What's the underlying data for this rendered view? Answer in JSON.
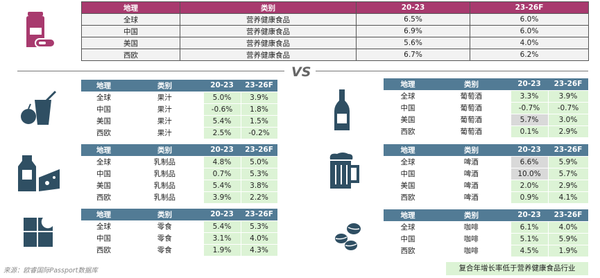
{
  "columns": {
    "geo": "地理",
    "cat": "类别",
    "p1": "20-23",
    "p2": "23-26F"
  },
  "colors": {
    "top_header": "#A83A6E",
    "sub_header": "#527B95",
    "highlight_green": "#dcf3d5",
    "highlight_grey": "#d9d9d9",
    "icon_top": "#A83A6E",
    "icon_sub": "#2F4F63"
  },
  "vs": "VS",
  "top": {
    "icon": "supplement-bottle-icon",
    "rows": [
      {
        "geo": "全球",
        "cat": "营养健康食品",
        "p1": "6.5%",
        "p2": "6.0%"
      },
      {
        "geo": "中国",
        "cat": "营养健康食品",
        "p1": "6.9%",
        "p2": "6.0%"
      },
      {
        "geo": "美国",
        "cat": "营养健康食品",
        "p1": "5.6%",
        "p2": "4.0%"
      },
      {
        "geo": "西欧",
        "cat": "营养健康食品",
        "p1": "6.7%",
        "p2": "6.2%"
      }
    ]
  },
  "juice": {
    "icon": "juice-icon",
    "rows": [
      {
        "geo": "全球",
        "cat": "果汁",
        "p1": "5.0%",
        "p2": "3.9%"
      },
      {
        "geo": "中国",
        "cat": "果汁",
        "p1": "-0.6%",
        "p2": "1.8%"
      },
      {
        "geo": "美国",
        "cat": "果汁",
        "p1": "5.4%",
        "p2": "1.5%"
      },
      {
        "geo": "西欧",
        "cat": "果汁",
        "p1": "2.5%",
        "p2": "-0.2%"
      }
    ]
  },
  "dairy": {
    "icon": "dairy-icon",
    "rows": [
      {
        "geo": "全球",
        "cat": "乳制品",
        "p1": "4.8%",
        "p2": "5.0%"
      },
      {
        "geo": "中国",
        "cat": "乳制品",
        "p1": "0.7%",
        "p2": "5.3%"
      },
      {
        "geo": "美国",
        "cat": "乳制品",
        "p1": "5.4%",
        "p2": "3.8%"
      },
      {
        "geo": "西欧",
        "cat": "乳制品",
        "p1": "3.9%",
        "p2": "2.2%"
      }
    ]
  },
  "snack": {
    "icon": "chocolate-icon",
    "rows": [
      {
        "geo": "全球",
        "cat": "零食",
        "p1": "5.4%",
        "p2": "5.3%"
      },
      {
        "geo": "中国",
        "cat": "零食",
        "p1": "3.1%",
        "p2": "4.0%"
      },
      {
        "geo": "西欧",
        "cat": "零食",
        "p1": "1.9%",
        "p2": "4.3%"
      }
    ]
  },
  "wine": {
    "icon": "wine-bottle-icon",
    "rows": [
      {
        "geo": "全球",
        "cat": "葡萄酒",
        "p1": "3.3%",
        "p2": "3.9%"
      },
      {
        "geo": "中国",
        "cat": "葡萄酒",
        "p1": "-0.7%",
        "p2": "-0.7%"
      },
      {
        "geo": "美国",
        "cat": "葡萄酒",
        "p1": "5.7%",
        "p2": "3.0%",
        "p1_grey": true
      },
      {
        "geo": "西欧",
        "cat": "葡萄酒",
        "p1": "0.1%",
        "p2": "2.9%"
      }
    ]
  },
  "beer": {
    "icon": "beer-mug-icon",
    "rows": [
      {
        "geo": "全球",
        "cat": "啤酒",
        "p1": "6.6%",
        "p2": "5.9%",
        "p1_grey": true
      },
      {
        "geo": "中国",
        "cat": "啤酒",
        "p1": "10.0%",
        "p2": "5.7%",
        "p1_grey": true
      },
      {
        "geo": "美国",
        "cat": "啤酒",
        "p1": "2.0%",
        "p2": "2.9%"
      },
      {
        "geo": "西欧",
        "cat": "啤酒",
        "p1": "0.9%",
        "p2": "4.1%"
      }
    ]
  },
  "coffee": {
    "icon": "coffee-beans-icon",
    "rows": [
      {
        "geo": "全球",
        "cat": "咖啡",
        "p1": "6.1%",
        "p2": "4.0%"
      },
      {
        "geo": "中国",
        "cat": "咖啡",
        "p1": "5.1%",
        "p2": "5.9%"
      },
      {
        "geo": "西欧",
        "cat": "咖啡",
        "p1": "4.5%",
        "p2": "1.9%"
      }
    ]
  },
  "source": "来源：欧睿国际Passport数据库",
  "note": "复合年增长率低于营养健康食品行业"
}
